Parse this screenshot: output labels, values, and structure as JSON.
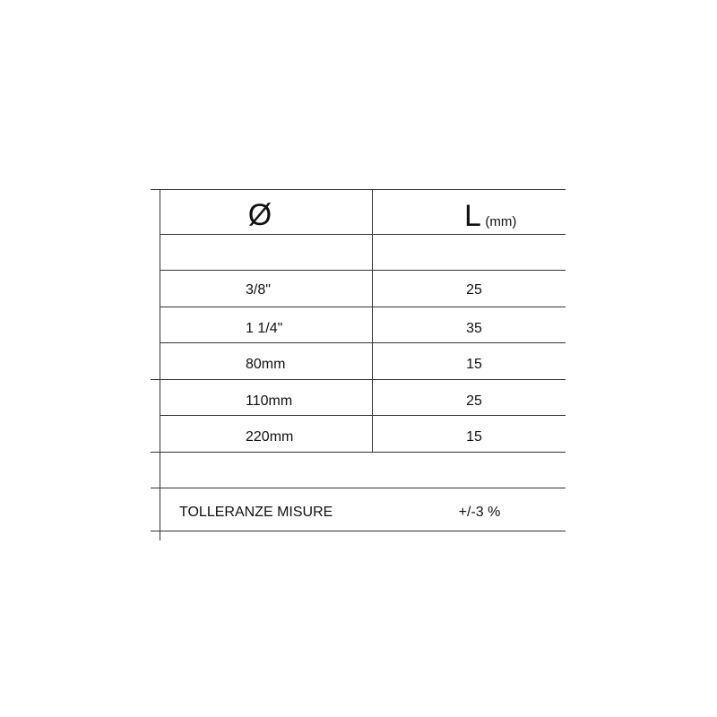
{
  "table": {
    "header": {
      "diameter_symbol": "Ø",
      "length_symbol": "L",
      "length_unit": "(mm)"
    },
    "rows": [
      {
        "diameter": "3/8\"",
        "length": "25"
      },
      {
        "diameter": "1 1/4\"",
        "length": "35"
      },
      {
        "diameter": "80mm",
        "length": "15"
      },
      {
        "diameter": "110mm",
        "length": "25"
      },
      {
        "diameter": "220mm",
        "length": "15"
      }
    ],
    "tolerance": {
      "label": "TOLLERANZE MISURE",
      "value": "+/-3 %"
    }
  }
}
